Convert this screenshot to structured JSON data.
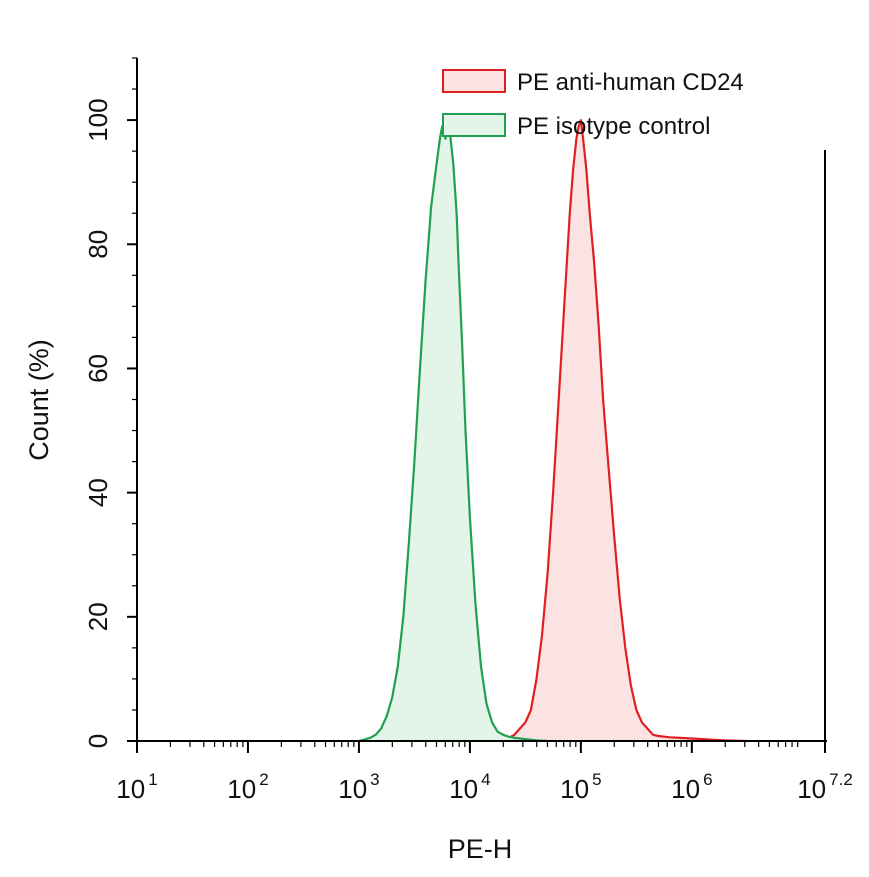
{
  "chart_data": {
    "type": "area",
    "xlabel": "PE-H",
    "ylabel": "Count  (%)",
    "x_scale": "log",
    "xlim": [
      1,
      7.2
    ],
    "ylim": [
      0,
      110
    ],
    "x_ticks": [
      {
        "base": "10",
        "exp": "1",
        "value": 1
      },
      {
        "base": "10",
        "exp": "2",
        "value": 2
      },
      {
        "base": "10",
        "exp": "3",
        "value": 3
      },
      {
        "base": "10",
        "exp": "4",
        "value": 4
      },
      {
        "base": "10",
        "exp": "5",
        "value": 5
      },
      {
        "base": "10",
        "exp": "6",
        "value": 6
      },
      {
        "base": "10",
        "exp": "7.2",
        "value": 7.2
      }
    ],
    "y_ticks": [
      "0",
      "20",
      "40",
      "60",
      "80",
      "100"
    ],
    "y_tick_values": [
      0,
      20,
      40,
      60,
      80,
      100
    ],
    "grid": false,
    "legend_position": "top-right",
    "series": [
      {
        "name": "PE anti-human CD24",
        "color": "#e02020",
        "fill": "#fbe3e3",
        "x_log": [
          4.3,
          4.35,
          4.4,
          4.45,
          4.5,
          4.55,
          4.6,
          4.65,
          4.7,
          4.75,
          4.8,
          4.85,
          4.9,
          4.93,
          4.96,
          4.98,
          5.0,
          5.02,
          5.05,
          5.08,
          5.12,
          5.16,
          5.2,
          5.25,
          5.3,
          5.35,
          5.4,
          5.45,
          5.5,
          5.55,
          5.6,
          5.65,
          5.7,
          5.8,
          5.9,
          6.0,
          6.1,
          6.2,
          6.3,
          6.4,
          6.5
        ],
        "y": [
          0,
          0.5,
          1,
          2,
          3,
          5,
          10,
          17,
          27,
          40,
          55,
          70,
          85,
          92,
          97,
          99,
          100,
          97,
          92,
          85,
          77,
          67,
          55,
          44,
          33,
          23,
          15,
          9,
          5,
          3,
          2,
          1,
          0.8,
          0.6,
          0.5,
          0.4,
          0.3,
          0.2,
          0.1,
          0.05,
          0
        ]
      },
      {
        "name": "PE isotype control",
        "color": "#20a050",
        "fill": "#e3f4e8",
        "x_log": [
          3.0,
          3.1,
          3.15,
          3.2,
          3.25,
          3.3,
          3.35,
          3.4,
          3.45,
          3.5,
          3.55,
          3.6,
          3.65,
          3.7,
          3.73,
          3.75,
          3.78,
          3.8,
          3.82,
          3.85,
          3.88,
          3.9,
          3.93,
          3.96,
          4.0,
          4.05,
          4.1,
          4.15,
          4.2,
          4.25,
          4.3,
          4.35,
          4.4,
          4.5,
          4.6,
          4.7
        ],
        "y": [
          0,
          0.5,
          1,
          2,
          4,
          7,
          12,
          20,
          32,
          45,
          60,
          74,
          86,
          93,
          97,
          99,
          97,
          100,
          98,
          93,
          85,
          76,
          64,
          50,
          36,
          22,
          12,
          6,
          3,
          1.5,
          1,
          0.7,
          0.5,
          0.3,
          0.1,
          0
        ]
      }
    ]
  }
}
